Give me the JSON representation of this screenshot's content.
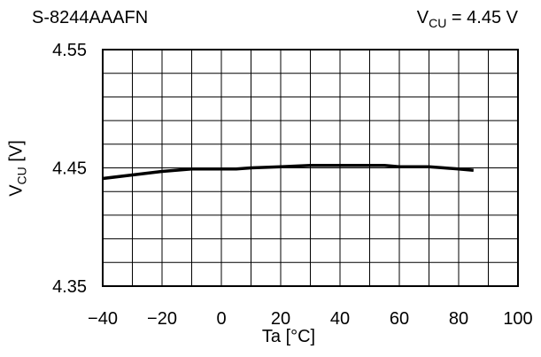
{
  "header": {
    "part_number": "S-8244AAAFN",
    "condition_main": "V",
    "condition_sub": "CU",
    "condition_rest": " = 4.45 V"
  },
  "axes": {
    "ylabel_main": "V",
    "ylabel_sub": "CU",
    "ylabel_unit": " [V]",
    "xlabel": "Ta [°C]"
  },
  "chart_data": {
    "type": "line",
    "title": "",
    "xlabel": "Ta [°C]",
    "ylabel": "VCU [V]",
    "xlim": [
      -40,
      100
    ],
    "ylim": [
      4.35,
      4.55
    ],
    "x_ticks": [
      -40,
      -20,
      0,
      20,
      40,
      60,
      80,
      100
    ],
    "x_tick_labels": [
      "−40",
      "−20",
      "0",
      "20",
      "40",
      "60",
      "80",
      "100"
    ],
    "y_ticks": [
      4.35,
      4.45,
      4.55
    ],
    "y_tick_labels": [
      "4.35",
      "4.45",
      "4.55"
    ],
    "grid": true,
    "series": [
      {
        "x": [
          -40,
          -30,
          -20,
          -10,
          0,
          5,
          10,
          20,
          30,
          40,
          50,
          55,
          60,
          70,
          75,
          80,
          85
        ],
        "y": [
          4.441,
          4.444,
          4.447,
          4.449,
          4.449,
          4.449,
          4.45,
          4.451,
          4.452,
          4.452,
          4.452,
          4.452,
          4.451,
          4.451,
          4.45,
          4.449,
          4.448
        ]
      }
    ]
  }
}
